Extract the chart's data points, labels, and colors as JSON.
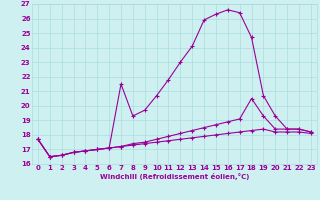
{
  "xlabel": "Windchill (Refroidissement éolien,°C)",
  "bg_color": "#cff0f0",
  "grid_color": "#aadddd",
  "line_color": "#990099",
  "xlim": [
    -0.5,
    23.5
  ],
  "ylim": [
    16,
    27
  ],
  "xticks": [
    0,
    1,
    2,
    3,
    4,
    5,
    6,
    7,
    8,
    9,
    10,
    11,
    12,
    13,
    14,
    15,
    16,
    17,
    18,
    19,
    20,
    21,
    22,
    23
  ],
  "yticks": [
    16,
    17,
    18,
    19,
    20,
    21,
    22,
    23,
    24,
    25,
    26,
    27
  ],
  "curve1_x": [
    0,
    1,
    2,
    3,
    4,
    5,
    6,
    7,
    8,
    9,
    10,
    11,
    12,
    13,
    14,
    15,
    16,
    17,
    18,
    19,
    20,
    21,
    22,
    23
  ],
  "curve1_y": [
    17.7,
    16.5,
    16.6,
    16.8,
    16.9,
    17.0,
    17.1,
    21.5,
    19.3,
    19.7,
    20.7,
    21.8,
    23.0,
    24.1,
    25.9,
    26.3,
    26.6,
    26.4,
    24.7,
    20.7,
    19.3,
    18.4,
    18.4,
    18.2
  ],
  "curve2_x": [
    0,
    1,
    2,
    3,
    4,
    5,
    6,
    7,
    8,
    9,
    10,
    11,
    12,
    13,
    14,
    15,
    16,
    17,
    18,
    19,
    20,
    21,
    22,
    23
  ],
  "curve2_y": [
    17.7,
    16.5,
    16.6,
    16.8,
    16.9,
    17.0,
    17.1,
    17.2,
    17.4,
    17.5,
    17.7,
    17.9,
    18.1,
    18.3,
    18.5,
    18.7,
    18.9,
    19.1,
    20.5,
    19.3,
    18.4,
    18.4,
    18.4,
    18.2
  ],
  "curve3_x": [
    0,
    1,
    2,
    3,
    4,
    5,
    6,
    7,
    8,
    9,
    10,
    11,
    12,
    13,
    14,
    15,
    16,
    17,
    18,
    19,
    20,
    21,
    22,
    23
  ],
  "curve3_y": [
    17.7,
    16.5,
    16.6,
    16.8,
    16.9,
    17.0,
    17.1,
    17.2,
    17.3,
    17.4,
    17.5,
    17.6,
    17.7,
    17.8,
    17.9,
    18.0,
    18.1,
    18.2,
    18.3,
    18.4,
    18.2,
    18.2,
    18.2,
    18.1
  ]
}
